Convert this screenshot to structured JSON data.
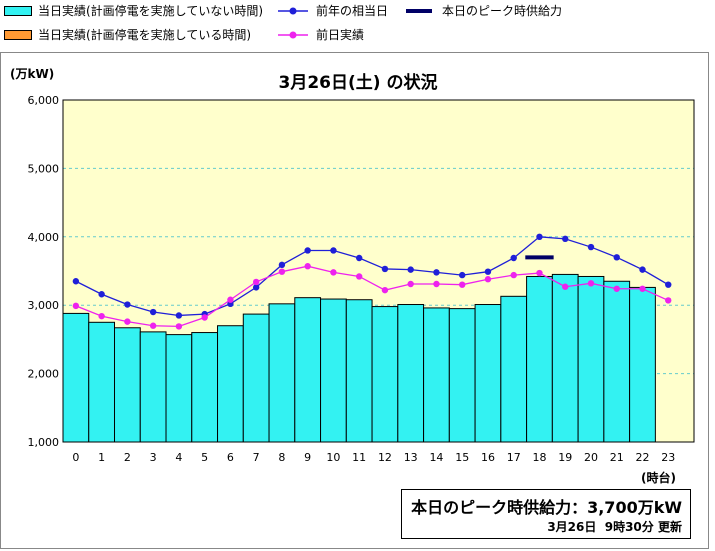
{
  "legend": {
    "cyan_label": "当日実績(計画停電を実施していない時間)",
    "orange_label": "当日実績(計画停電を実施している時間)",
    "prev_year_label": "前年の相当日",
    "prev_day_label": "前日実績",
    "peak_label": "本日のピーク時供給力"
  },
  "colors": {
    "plot_bg": "#ffffcc",
    "bar_cyan": "#33f2f2",
    "bar_orange": "#ff9933",
    "prev_year": "#1f1fd8",
    "prev_day": "#ee22ee",
    "peak": "#000066",
    "grid": "#66cccc"
  },
  "info": {
    "peak_text": "本日のピーク時供給力：",
    "peak_value": "3,700万kW",
    "update_date": "3月26日",
    "update_time": "9時30分",
    "update_suffix": "更新"
  },
  "chart_data": {
    "type": "bar",
    "title": "3月26日(土) の状況",
    "ylabel": "(万kW)",
    "xlabel": "(時台)",
    "ylim": [
      1000,
      6000
    ],
    "yticks": [
      "1,000",
      "2,000",
      "3,000",
      "4,000",
      "5,000",
      "6,000"
    ],
    "categories": [
      "0",
      "1",
      "2",
      "3",
      "4",
      "5",
      "6",
      "7",
      "8",
      "9",
      "10",
      "11",
      "12",
      "13",
      "14",
      "15",
      "16",
      "17",
      "18",
      "19",
      "20",
      "21",
      "22",
      "23"
    ],
    "grid": true,
    "series": [
      {
        "name": "当日実績(計画停電を実施していない時間)",
        "kind": "bar",
        "values": [
          2880,
          2750,
          2670,
          2610,
          2570,
          2600,
          2700,
          2870,
          3020,
          3110,
          3090,
          3080,
          2980,
          3010,
          2960,
          2950,
          3010,
          3130,
          3420,
          3450,
          3420,
          3350,
          3260,
          null
        ]
      },
      {
        "name": "前年の相当日",
        "kind": "line",
        "values": [
          3350,
          3160,
          3010,
          2900,
          2850,
          2870,
          3020,
          3260,
          3590,
          3800,
          3800,
          3690,
          3530,
          3520,
          3480,
          3440,
          3490,
          3690,
          4000,
          3970,
          3850,
          3700,
          3520,
          3300
        ]
      },
      {
        "name": "前日実績",
        "kind": "line",
        "values": [
          2990,
          2840,
          2760,
          2700,
          2690,
          2820,
          3080,
          3340,
          3490,
          3570,
          3480,
          3420,
          3220,
          3310,
          3310,
          3300,
          3380,
          3440,
          3470,
          3270,
          3320,
          3240,
          3240,
          3070
        ]
      },
      {
        "name": "本日のピーク時供給力",
        "kind": "peak",
        "value": 3700,
        "hour": 18
      }
    ]
  }
}
